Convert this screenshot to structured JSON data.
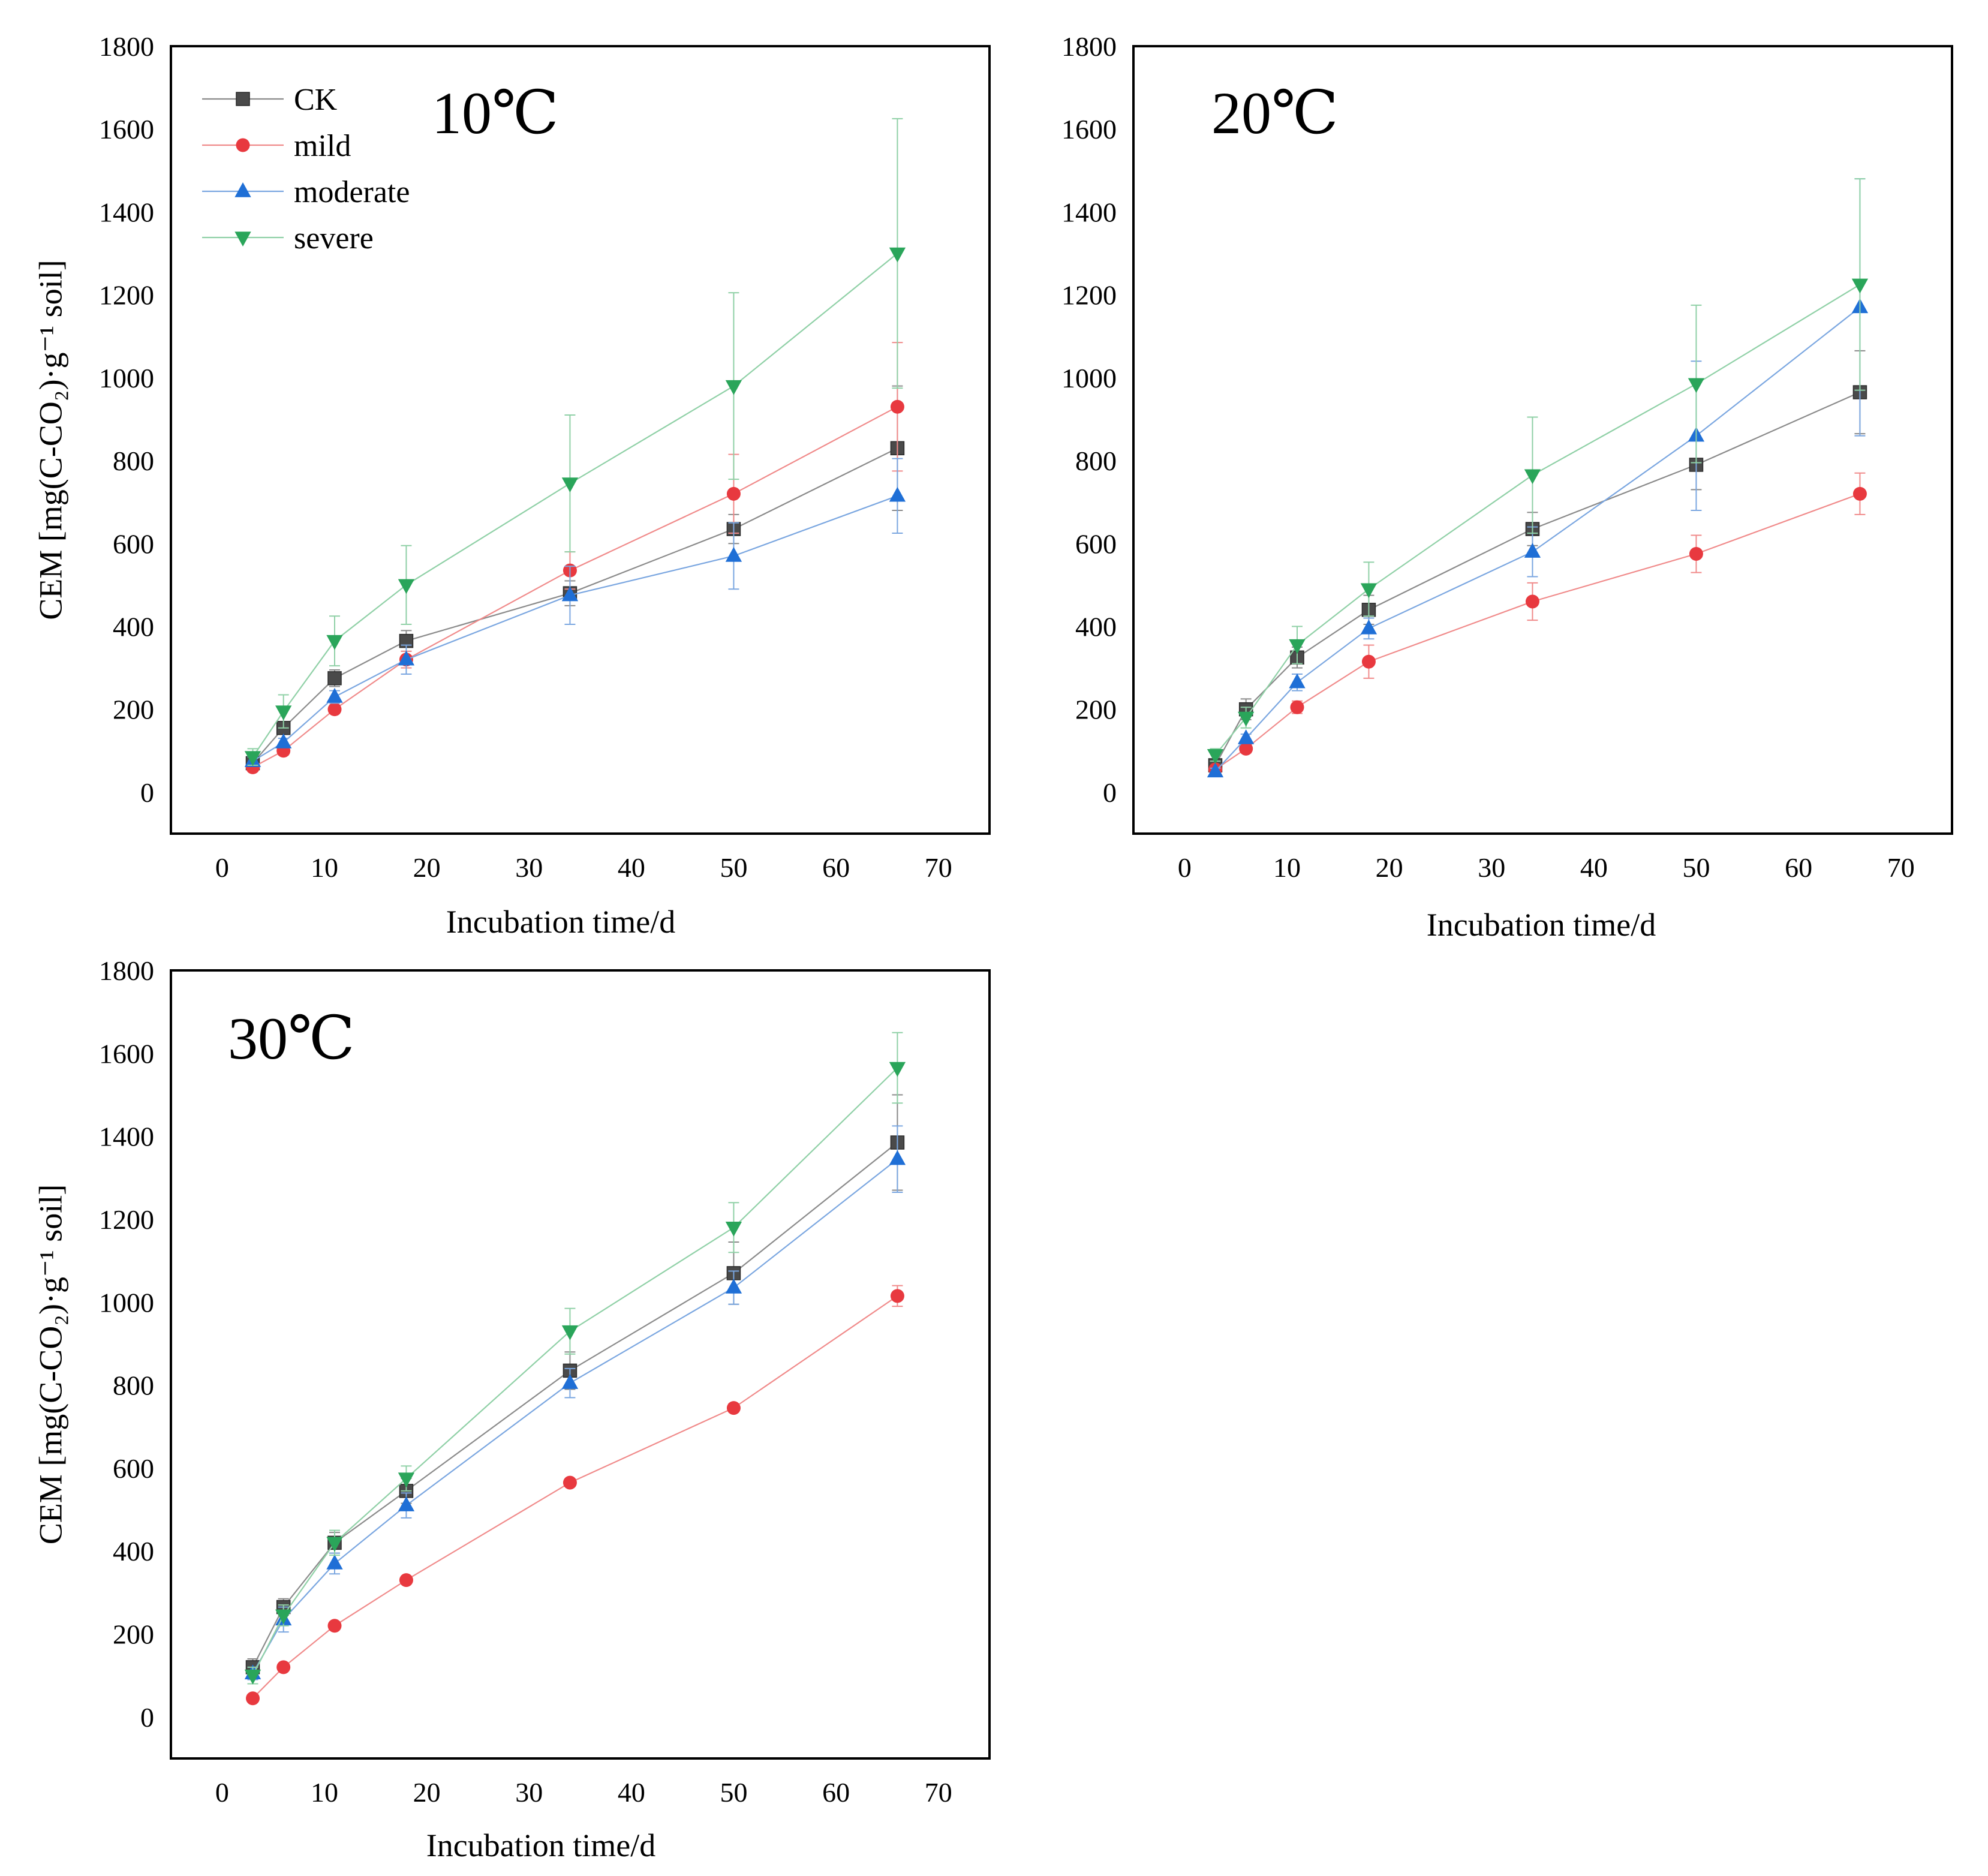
{
  "figure": {
    "series_styles": [
      {
        "key": "CK",
        "color": "#4a4a4a",
        "line_color": "#8a8a8a",
        "marker": "square"
      },
      {
        "key": "mild",
        "color": "#e8393f",
        "line_color": "#f08a8a",
        "marker": "circle"
      },
      {
        "key": "moderate",
        "color": "#1f6fd6",
        "line_color": "#7aa6e0",
        "marker": "triangle-up"
      },
      {
        "key": "severe",
        "color": "#2aa55a",
        "line_color": "#8fd0a6",
        "marker": "triangle-down"
      }
    ]
  },
  "chart_data": [
    {
      "type": "line",
      "title": "10℃",
      "xlabel": "Incubation time/d",
      "ylabel": "CEM [mg(C-CO₂)·g⁻¹ soil]",
      "xlim": [
        -5,
        75
      ],
      "ylim": [
        -100,
        1800
      ],
      "xticks": [
        "0",
        "10",
        "20",
        "30",
        "40",
        "50",
        "60",
        "70"
      ],
      "yticks": [
        "0",
        "200",
        "400",
        "600",
        "800",
        "1000",
        "1200",
        "1400",
        "1600",
        "1800"
      ],
      "legend": {
        "position": "top-left",
        "entries": [
          "CK",
          "mild",
          "moderate",
          "severe"
        ]
      },
      "x": [
        3,
        6,
        11,
        18,
        34,
        50,
        66
      ],
      "series": [
        {
          "name": "CK",
          "values": [
            70,
            155,
            275,
            365,
            480,
            635,
            830
          ],
          "errors": [
            12,
            15,
            20,
            25,
            30,
            35,
            150
          ]
        },
        {
          "name": "mild",
          "values": [
            60,
            100,
            200,
            320,
            535,
            720,
            930
          ],
          "errors": [
            8,
            10,
            10,
            20,
            45,
            95,
            155
          ]
        },
        {
          "name": "moderate",
          "values": [
            75,
            120,
            230,
            320,
            475,
            570,
            715
          ],
          "errors": [
            10,
            10,
            15,
            35,
            70,
            80,
            90
          ]
        },
        {
          "name": "severe",
          "values": [
            85,
            195,
            365,
            500,
            745,
            980,
            1300
          ],
          "errors": [
            20,
            40,
            60,
            95,
            165,
            225,
            325
          ]
        }
      ]
    },
    {
      "type": "line",
      "title": "20℃",
      "xlabel": "Incubation time/d",
      "ylabel": "",
      "xlim": [
        -5,
        75
      ],
      "ylim": [
        -100,
        1800
      ],
      "xticks": [
        "0",
        "10",
        "20",
        "30",
        "40",
        "50",
        "60",
        "70"
      ],
      "yticks": [
        "0",
        "200",
        "400",
        "600",
        "800",
        "1000",
        "1200",
        "1400",
        "1600",
        "1800"
      ],
      "legend": {
        "position": "none",
        "entries": []
      },
      "x": [
        3,
        6,
        11,
        18,
        34,
        50,
        66
      ],
      "series": [
        {
          "name": "CK",
          "values": [
            65,
            200,
            325,
            440,
            635,
            790,
            965
          ],
          "errors": [
            12,
            25,
            25,
            35,
            40,
            60,
            100
          ]
        },
        {
          "name": "mild",
          "values": [
            55,
            105,
            205,
            315,
            460,
            575,
            720
          ],
          "errors": [
            8,
            10,
            15,
            40,
            45,
            45,
            50
          ]
        },
        {
          "name": "moderate",
          "values": [
            50,
            130,
            265,
            395,
            580,
            860,
            1170
          ],
          "errors": [
            8,
            10,
            20,
            25,
            60,
            180,
            310
          ]
        },
        {
          "name": "severe",
          "values": [
            90,
            180,
            355,
            490,
            765,
            985,
            1225
          ],
          "errors": [
            15,
            25,
            45,
            65,
            140,
            190,
            255
          ]
        }
      ]
    },
    {
      "type": "line",
      "title": "30℃",
      "xlabel": "Incubation time/d",
      "ylabel": "CEM [mg(C-CO₂)·g⁻¹ soil]",
      "xlim": [
        -5,
        75
      ],
      "ylim": [
        -100,
        1800
      ],
      "xticks": [
        "0",
        "10",
        "20",
        "30",
        "40",
        "50",
        "60",
        "70"
      ],
      "yticks": [
        "0",
        "200",
        "400",
        "600",
        "800",
        "1000",
        "1200",
        "1400",
        "1600",
        "1800"
      ],
      "legend": {
        "position": "none",
        "entries": []
      },
      "x": [
        3,
        6,
        11,
        18,
        34,
        50,
        66
      ],
      "series": [
        {
          "name": "CK",
          "values": [
            120,
            265,
            420,
            545,
            835,
            1070,
            1385
          ],
          "errors": [
            20,
            20,
            25,
            30,
            45,
            75,
            115
          ]
        },
        {
          "name": "mild",
          "values": [
            45,
            120,
            220,
            330,
            565,
            745,
            1015
          ],
          "errors": [
            5,
            5,
            8,
            8,
            8,
            10,
            25
          ]
        },
        {
          "name": "moderate",
          "values": [
            105,
            235,
            370,
            510,
            805,
            1035,
            1345
          ],
          "errors": [
            15,
            30,
            25,
            30,
            35,
            40,
            80
          ]
        },
        {
          "name": "severe",
          "values": [
            100,
            245,
            420,
            575,
            930,
            1180,
            1565
          ],
          "errors": [
            20,
            25,
            30,
            30,
            55,
            60,
            85
          ]
        }
      ]
    }
  ]
}
